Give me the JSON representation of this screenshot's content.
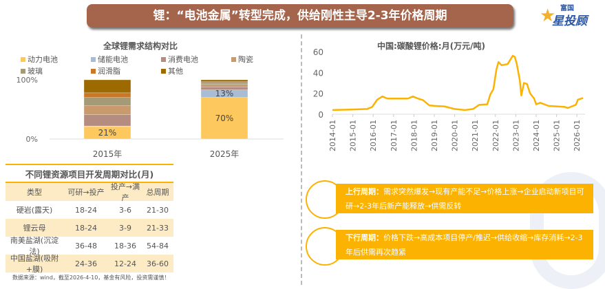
{
  "banner": {
    "title": "锂：“电池金属”转型完成，供给刚性主导2-3年价格周期"
  },
  "logo": {
    "small": "富国",
    "big": "星投顾"
  },
  "demand_chart": {
    "title": "全球锂需求结构对比"
  },
  "price_chart": {
    "title": "中国:碳酸锂价格:月(万元/吨)"
  },
  "chart_data": [
    {
      "type": "bar",
      "stacked": true,
      "title": "全球锂需求结构对比",
      "categories": [
        "2015年",
        "2025年"
      ],
      "yticks": [
        "0%",
        "100%"
      ],
      "ylim": [
        0,
        100
      ],
      "series": [
        {
          "name": "动力电池",
          "color": "#fdc95f",
          "values": [
            21,
            70
          ],
          "labels": [
            "21%",
            "70%"
          ]
        },
        {
          "name": "储能电池",
          "color": "#a8bcd4",
          "values": [
            1,
            13
          ],
          "labels": [
            "",
            "13%"
          ]
        },
        {
          "name": "消费电池",
          "color": "#b58c80",
          "values": [
            19,
            5
          ]
        },
        {
          "name": "陶瓷",
          "color": "#c89a6e",
          "values": [
            15,
            4
          ]
        },
        {
          "name": "玻璃",
          "color": "#a59a78",
          "values": [
            14,
            3
          ]
        },
        {
          "name": "润滑脂",
          "color": "#c87828",
          "values": [
            8,
            2
          ]
        },
        {
          "name": "其他",
          "color": "#9c6a00",
          "values": [
            22,
            3
          ]
        }
      ],
      "legend": "top"
    },
    {
      "type": "line",
      "title": "中国:碳酸锂价格:月(万元/吨)",
      "ylim": [
        0,
        60
      ],
      "yticks": [
        "0",
        "20",
        "40",
        "60"
      ],
      "xticks": [
        "2014-01",
        "2015-01",
        "2016-01",
        "2017-01",
        "2018-01",
        "2019-01",
        "2020-01",
        "2021-01",
        "2022-01",
        "2023-01",
        "2024-01",
        "2025-01",
        "2026-01"
      ],
      "color": "#fcb200",
      "points": [
        [
          2014.0,
          4
        ],
        [
          2015.0,
          4.5
        ],
        [
          2015.7,
          5
        ],
        [
          2015.95,
          7
        ],
        [
          2016.2,
          14
        ],
        [
          2016.45,
          17
        ],
        [
          2016.7,
          15
        ],
        [
          2017.0,
          15
        ],
        [
          2017.7,
          15
        ],
        [
          2017.95,
          17
        ],
        [
          2018.2,
          15
        ],
        [
          2018.45,
          13.5
        ],
        [
          2018.75,
          8.5
        ],
        [
          2019.0,
          8
        ],
        [
          2019.5,
          7.5
        ],
        [
          2020.0,
          5
        ],
        [
          2020.5,
          4
        ],
        [
          2020.9,
          5
        ],
        [
          2021.2,
          9
        ],
        [
          2021.6,
          9.5
        ],
        [
          2021.75,
          19
        ],
        [
          2021.9,
          24
        ],
        [
          2022.05,
          43
        ],
        [
          2022.15,
          50
        ],
        [
          2022.3,
          47
        ],
        [
          2022.6,
          48
        ],
        [
          2022.85,
          56
        ],
        [
          2022.95,
          55
        ],
        [
          2023.05,
          48
        ],
        [
          2023.2,
          32
        ],
        [
          2023.27,
          18
        ],
        [
          2023.4,
          30
        ],
        [
          2023.55,
          29
        ],
        [
          2023.7,
          20
        ],
        [
          2023.9,
          15
        ],
        [
          2024.0,
          9.5
        ],
        [
          2024.2,
          11
        ],
        [
          2024.6,
          8
        ],
        [
          2025.0,
          7.5
        ],
        [
          2025.4,
          7
        ],
        [
          2025.55,
          6
        ],
        [
          2025.75,
          7.5
        ],
        [
          2025.95,
          9
        ],
        [
          2026.05,
          14
        ],
        [
          2026.3,
          15.5
        ]
      ]
    }
  ],
  "table": {
    "title": "不同锂资源项目开发周期对比(月)",
    "headers": [
      "类型",
      "可研→投产",
      "投产→满产",
      "总周期"
    ],
    "rows": [
      [
        "硬岩(露天)",
        "18-24",
        "3-6",
        "21-30"
      ],
      [
        "锂云母",
        "18-24",
        "3-9",
        "21-33"
      ],
      [
        "南美盐湖(沉淀法)",
        "36-48",
        "18-36",
        "54-84"
      ],
      [
        "中国盐湖(吸附+膜)",
        "24-36",
        "12-24",
        "36-60"
      ]
    ]
  },
  "cycles": {
    "up_label": "上行周期：",
    "up_text": "需求突然爆发→现有产能不足→价格上涨→企业启动新项目可研→2-3年后新产能释放→供需反转",
    "down_label": "下行周期：",
    "down_text": "价格下跌→高成本项目停产/推迟→供给收缩→库存消耗→2-3年后供需再次趋紧"
  },
  "footer": "数据来源：wind，截至2026-4-10，基金有风险，投资需谨慎！"
}
